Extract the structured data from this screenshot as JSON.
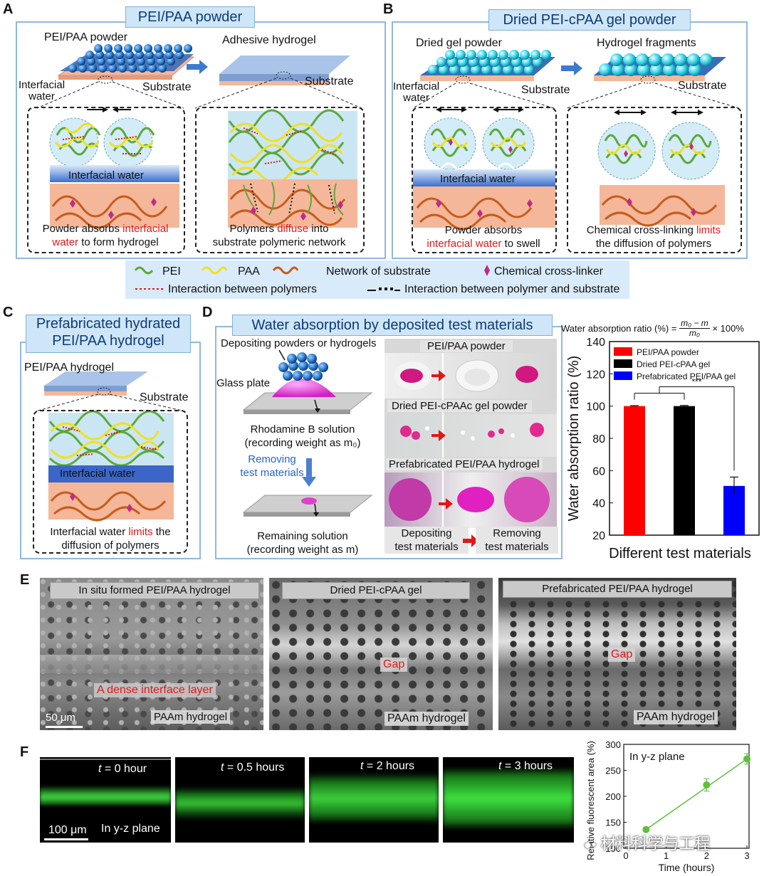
{
  "panel_a": {
    "letter": "A",
    "title": "PEI/PAA powder",
    "powder_label": "PEI/PAA powder",
    "adhesive_label": "Adhesive hydrogel",
    "interfacial_label": "Interfacial\nwater",
    "substrate_left": "Substrate",
    "substrate_right": "Substrate",
    "interfacial_water_band": "Interfacial water",
    "cap_left_1": "Powder absorbs ",
    "cap_left_red1": "interfacial",
    "cap_left_red2": "water",
    "cap_left_2": " to form hydrogel",
    "cap_right_1": "Polymers ",
    "cap_right_red": "diffuse",
    "cap_right_2": " into",
    "cap_right_3": "substrate polymeric network"
  },
  "panel_b": {
    "letter": "B",
    "title": "Dried PEI-cPAA gel powder",
    "dried_label": "Dried gel powder",
    "fragments_label": "Hydrogel fragments",
    "interfacial_label": "Interfacial\nwater",
    "substrate_left": "Substrate",
    "substrate_right": "Substrate",
    "interfacial_water_band": "Interfacial water",
    "cap_left_1": "Powder absorbs",
    "cap_left_red": "interfacial water",
    "cap_left_2": " to swell",
    "cap_right_1": "Chemical cross-linking ",
    "cap_right_red": "limits",
    "cap_right_2": "the diffusion of polymers"
  },
  "legend": {
    "pei": "PEI",
    "paa": "PAA",
    "network": "Network of substrate",
    "crosslinker": "Chemical cross-linker",
    "interaction_polymers": "Interaction between polymers",
    "interaction_substrate": "Interaction between polymer and substrate"
  },
  "panel_c": {
    "letter": "C",
    "title_1": "Prefabricated hydrated",
    "title_2": "PEI/PAA hydrogel",
    "hydrogel_label": "PEI/PAA hydrogel",
    "substrate": "Substrate",
    "interfacial_water_band": "Interfacial water",
    "cap_1": "Interfacial water ",
    "cap_red": "limits",
    "cap_2": " the",
    "cap_3": "diffusion of polymers"
  },
  "panel_d": {
    "letter": "D",
    "title": "Water absorption by deposited test materials",
    "depositing": "Depositing powders or hydrogels",
    "glass_plate": "Glass plate",
    "rhodamine": "Rhodamine B solution",
    "recording_m0": "(recording weight as m₀)",
    "removing_1": "Removing",
    "removing_2": "test materials",
    "remaining": "Remaining solution",
    "recording_m": "(recording weight as m)",
    "photo_row1": "PEI/PAA powder",
    "photo_row2": "Dried PEI-cPAAc gel powder",
    "photo_row3": "Prefabricated PEI/PAA hydrogel",
    "bottom_left_1": "Depositing",
    "bottom_left_2": "test materials",
    "bottom_right_1": "Removing",
    "bottom_right_2": "test materials",
    "formula_prefix": "Water absorption ratio (%) = ",
    "formula_num": "m₀ − m",
    "formula_den": "m₀",
    "formula_suffix": " × 100%"
  },
  "panel_e": {
    "letter": "E",
    "img1_title": "In situ formed PEI/PAA hydrogel",
    "img1_red": "A dense interface layer",
    "img1_bottom": "PAAm hydrogel",
    "scale_bar": "50 μm",
    "img2_title": "Dried PEI-cPAA gel",
    "img2_red": "Gap",
    "img2_bottom": "PAAm hydrogel",
    "img3_title": "Prefabricated PEI/PAA hydrogel",
    "img3_red": "Gap",
    "img3_bottom": "PAAm hydrogel"
  },
  "panel_f": {
    "letter": "F",
    "frames": [
      {
        "prefix": "t",
        "text": " = 0 hour"
      },
      {
        "prefix": "t",
        "text": " = 0.5 hours"
      },
      {
        "prefix": "t",
        "text": " = 2 hours"
      },
      {
        "prefix": "t",
        "text": " = 3 hours"
      }
    ],
    "scale_bar": "100 μm",
    "plane_label": "In y-z plane",
    "watermark": "材料科学与工程"
  },
  "colors": {
    "red_bar": "#ff0000",
    "black_bar": "#000000",
    "blue_bar": "#0000ff",
    "green_line": "#5fbf3a",
    "title_blue": "#0d3a78"
  },
  "chart_data": [
    {
      "type": "bar",
      "categories": [
        "PEI/PAA powder",
        "Dried PEI-cPAA gel",
        "Prefabricated PEI/PAA gel"
      ],
      "values": [
        100,
        100,
        50.5
      ],
      "errors": [
        0.3,
        0.4,
        5.5
      ],
      "colors": [
        "#ff0000",
        "#000000",
        "#0000ff"
      ],
      "xlabel": "Different test materials",
      "ylabel": "Water absorption ratio (%)",
      "ylim": [
        20,
        140
      ],
      "yticks": [
        20,
        40,
        60,
        80,
        100,
        120,
        140
      ],
      "significance": "***",
      "legend": [
        "PEI/PAA powder",
        "Dried PEI-cPAA gel",
        "Prefabricated PEI/PAA gel"
      ],
      "legend_placement": "top-right"
    },
    {
      "type": "line",
      "x": [
        0.5,
        2,
        3
      ],
      "y": [
        136,
        222,
        272
      ],
      "errors": [
        4,
        12,
        10
      ],
      "xlabel": "Time (hours)",
      "ylabel": "Relative fluorescent area (%)",
      "xlim": [
        0,
        3
      ],
      "ylim": [
        100,
        300
      ],
      "xticks": [
        0,
        1,
        2,
        3
      ],
      "yticks": [
        100,
        150,
        200,
        250,
        300
      ],
      "annotation": "In y-z plane"
    }
  ]
}
